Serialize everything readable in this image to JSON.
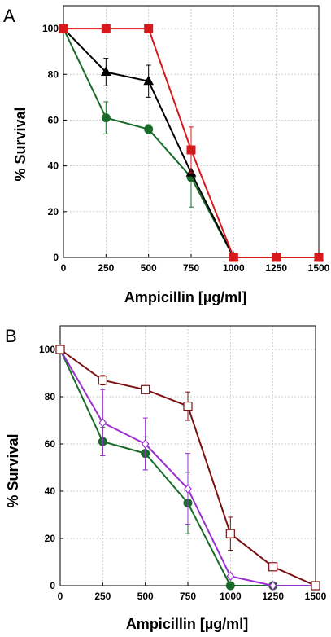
{
  "chart_data": [
    {
      "type": "line",
      "panel_label": "A",
      "xlabel": "Ampicillin [µg/ml]",
      "ylabel": "% Survival",
      "xlim": [
        0,
        1500
      ],
      "ylim": [
        0,
        110
      ],
      "x_ticks": [
        0,
        250,
        500,
        750,
        1000,
        1250,
        1500
      ],
      "y_ticks": [
        0,
        20,
        40,
        60,
        80,
        100
      ],
      "grid": true,
      "series": [
        {
          "color": "#d8191c",
          "marker": "square-filled",
          "x": [
            0,
            250,
            500,
            750,
            1000,
            1250,
            1500
          ],
          "values": [
            100,
            100,
            100,
            47,
            0,
            0,
            0
          ],
          "err": [
            0,
            0,
            0,
            10,
            0,
            0,
            0
          ]
        },
        {
          "color": "#000000",
          "marker": "triangle-filled",
          "x": [
            0,
            250,
            500,
            750,
            1000,
            1250,
            1500
          ],
          "values": [
            100,
            81,
            77,
            37,
            0,
            0,
            0
          ],
          "err": [
            0,
            6,
            7,
            0,
            0,
            0,
            0
          ]
        },
        {
          "color": "#1a6b2a",
          "marker": "circle-filled",
          "x": [
            0,
            250,
            500,
            750,
            1000,
            1250,
            1500
          ],
          "values": [
            100,
            61,
            56,
            35,
            0,
            0,
            0
          ],
          "err": [
            0,
            7,
            2,
            13,
            0,
            0,
            0
          ]
        }
      ]
    },
    {
      "type": "line",
      "panel_label": "B",
      "xlabel": "Ampicillin [µg/ml]",
      "ylabel": "% Survival",
      "xlim": [
        0,
        1500
      ],
      "ylim": [
        0,
        110
      ],
      "x_ticks": [
        0,
        250,
        500,
        750,
        1000,
        1250,
        1500
      ],
      "y_ticks": [
        0,
        20,
        40,
        60,
        80,
        100
      ],
      "grid": true,
      "series": [
        {
          "color": "#7a1212",
          "marker": "square-open",
          "x": [
            0,
            250,
            500,
            750,
            1000,
            1250,
            1500
          ],
          "values": [
            100,
            87,
            83,
            76,
            22,
            8,
            0
          ],
          "err": [
            0,
            2,
            1,
            6,
            7,
            1,
            0
          ]
        },
        {
          "color": "#9b30d0",
          "marker": "diamond-open",
          "x": [
            0,
            250,
            500,
            750,
            1000,
            1250,
            1500
          ],
          "values": [
            100,
            69,
            60,
            41,
            4,
            0,
            0
          ],
          "err": [
            0,
            14,
            11,
            15,
            0,
            0,
            0
          ]
        },
        {
          "color": "#1a6b2a",
          "marker": "circle-filled",
          "x": [
            0,
            250,
            500,
            750,
            1000,
            1250,
            1500
          ],
          "values": [
            100,
            61,
            56,
            35,
            0,
            0,
            0
          ],
          "err": [
            0,
            6,
            7,
            13,
            0,
            0,
            0
          ]
        }
      ]
    }
  ]
}
